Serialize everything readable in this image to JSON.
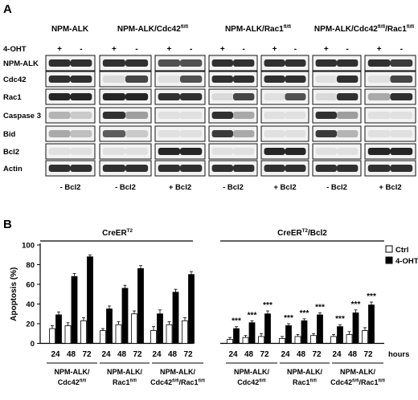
{
  "panel_a": {
    "letter": "A",
    "group_headers": [
      {
        "label": "NPM-ALK",
        "sup": ""
      },
      {
        "label": "NPM-ALK/Cdc42",
        "sup": "fl/fl"
      },
      {
        "label": "NPM-ALK/Rac1",
        "sup": "fl/fl"
      },
      {
        "label": "NPM-ALK/Cdc42",
        "sup": "fl/fl",
        "label2": "/Rac1",
        "sup2": "fl/fl"
      }
    ],
    "treatment_label": "4-OHT",
    "row_labels": [
      "NPM-ALK",
      "Cdc42",
      "Rac1",
      "Caspase 3",
      "Bid",
      "Bcl2",
      "Actin"
    ],
    "plus": "+",
    "minus": "-",
    "bottom_labels": [
      "- Bcl2",
      "- Bcl2",
      "+ Bcl2",
      "- Bcl2",
      "+ Bcl2",
      "- Bcl2",
      "+ Bcl2"
    ]
  },
  "panel_b": {
    "letter": "B",
    "group_titles": [
      {
        "label": "CreER",
        "sup": "T2"
      },
      {
        "label": "CreER",
        "sup": "T2",
        "label2": "/Bcl2"
      }
    ],
    "legend": [
      {
        "label": "Ctrl",
        "color": "#ffffff"
      },
      {
        "label": "4-OHT",
        "color": "#000000"
      }
    ],
    "hours_label": "hours",
    "significance": "***",
    "genotypes": [
      {
        "line1": "NPM-ALK/",
        "line2": "Cdc42",
        "sup2": "fl/fl",
        "line2b": ""
      },
      {
        "line1": "NPM-ALK/",
        "line2": "Rac1",
        "sup2": "fl/fl",
        "line2b": ""
      },
      {
        "line1": "NPM-ALK/",
        "line2": "Cdc42",
        "sup2": "fl/fl",
        "line2b": "/Rac1",
        "sup3": "fl/fl"
      },
      {
        "line1": "NPM-ALK/",
        "line2": "Cdc42",
        "sup2": "fl/fl",
        "line2b": ""
      },
      {
        "line1": "NPM-ALK/",
        "line2": "Rac1",
        "sup2": "fl/fl",
        "line2b": ""
      },
      {
        "line1": "NPM-ALK/",
        "line2": "Cdc42",
        "sup2": "fl/fl",
        "line2b": "/Rac1",
        "sup3": "fl/fl"
      }
    ]
  },
  "chart_data": {
    "type": "bar",
    "xlabel": "hours",
    "ylabel": "Apoptosis (%)",
    "ylim": [
      0,
      100
    ],
    "yticks": [
      0,
      20,
      40,
      60,
      80,
      100
    ],
    "categories": [
      "24",
      "48",
      "72",
      "24",
      "48",
      "72",
      "24",
      "48",
      "72",
      "24",
      "48",
      "72",
      "24",
      "48",
      "72",
      "24",
      "48",
      "72"
    ],
    "series": [
      {
        "name": "Ctrl",
        "color": "#ffffff",
        "values": [
          15,
          18,
          23,
          13,
          19,
          30,
          13,
          19,
          23,
          4,
          6,
          7,
          5,
          7,
          8,
          7,
          9,
          13
        ],
        "errors": [
          3,
          3,
          3,
          2,
          3,
          3,
          4,
          3,
          3,
          2,
          2,
          3,
          2,
          2,
          2,
          2,
          3,
          3
        ]
      },
      {
        "name": "4-OHT",
        "color": "#000000",
        "values": [
          29,
          68,
          88,
          35,
          56,
          76,
          30,
          52,
          70,
          15,
          21,
          30,
          18,
          23,
          29,
          17,
          31,
          39
        ],
        "errors": [
          3,
          3,
          2,
          3,
          3,
          3,
          4,
          3,
          3,
          2,
          2,
          3,
          2,
          2,
          2,
          2,
          3,
          3
        ]
      }
    ],
    "significant": [
      false,
      false,
      false,
      false,
      false,
      false,
      false,
      false,
      false,
      true,
      true,
      true,
      true,
      true,
      true,
      true,
      true,
      true
    ],
    "legend_position": "top-right",
    "grid": false
  }
}
